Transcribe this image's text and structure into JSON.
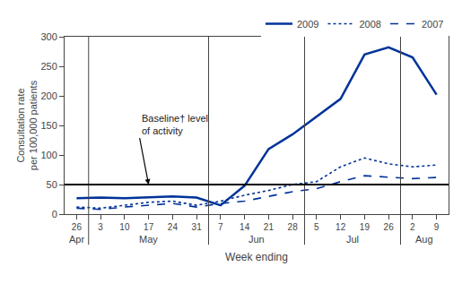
{
  "chart_data": {
    "type": "line",
    "xlabel": "Week ending",
    "ylabel": "Consultation rate\nper 100,000 patients",
    "categories": [
      "26",
      "3",
      "10",
      "17",
      "24",
      "31",
      "7",
      "14",
      "21",
      "28",
      "5",
      "12",
      "19",
      "26",
      "2",
      "9"
    ],
    "month_labels": [
      "Apr",
      "May",
      "Jun",
      "Jul",
      "Aug"
    ],
    "series": [
      {
        "name": "2009",
        "color": "#003399",
        "line_style": "solid",
        "values": [
          27,
          28,
          27,
          28,
          30,
          28,
          15,
          48,
          110,
          135,
          165,
          195,
          270,
          282,
          265,
          202
        ]
      },
      {
        "name": "2008",
        "color": "#003399",
        "line_style": "dot",
        "values": [
          12,
          10,
          15,
          20,
          22,
          15,
          22,
          32,
          40,
          50,
          55,
          80,
          95,
          85,
          80,
          83
        ]
      },
      {
        "name": "2007",
        "color": "#003399",
        "line_style": "dash",
        "values": [
          10,
          8,
          12,
          15,
          18,
          12,
          18,
          22,
          30,
          38,
          43,
          55,
          65,
          62,
          60,
          62
        ]
      }
    ],
    "baseline": 50,
    "annotation": "Baseline† level\nof activity",
    "ylim": [
      0,
      300
    ],
    "yticks": [
      0,
      50,
      100,
      150,
      200,
      250,
      300
    ],
    "grid": false,
    "legend": "top"
  }
}
